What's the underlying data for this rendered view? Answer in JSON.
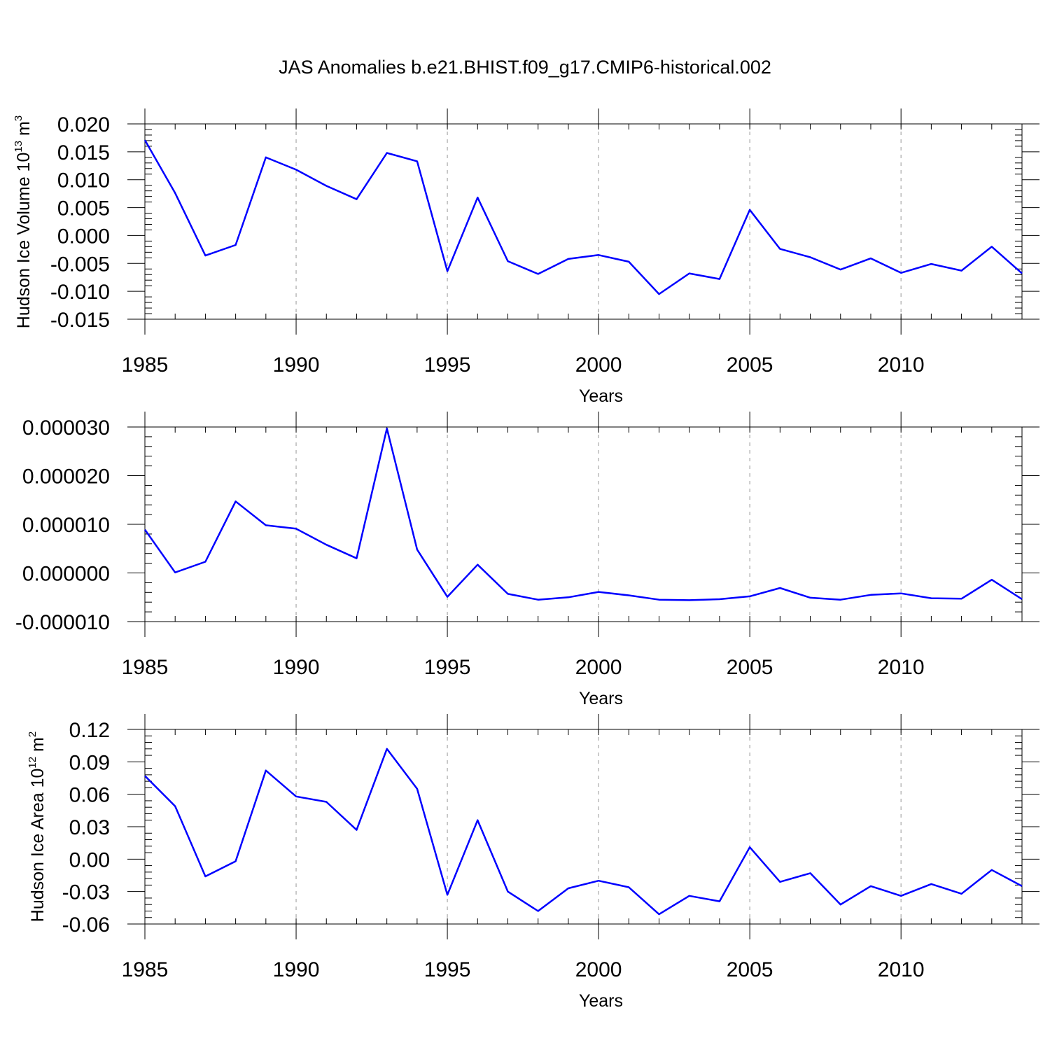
{
  "title": "JAS Anomalies b.e21.BHIST.f09_g17.CMIP6-historical.002",
  "colors": {
    "line": "#0000ff",
    "axis": "#000000",
    "grid": "#a8a8a8"
  },
  "chart_data": [
    {
      "type": "line",
      "xlabel": "Years",
      "ylabel": {
        "main": "Hudson Ice Volume 10",
        "sup1": "13",
        "unit": " m",
        "sup2": "3"
      },
      "xlim": [
        1985,
        2014
      ],
      "ylim": [
        -0.015,
        0.02
      ],
      "xticks": [
        1985,
        1990,
        1995,
        2000,
        2005,
        2010
      ],
      "xtick_labels": [
        "1985",
        "1990",
        "1995",
        "2000",
        "2005",
        "2010"
      ],
      "yticks": [
        0.02,
        0.015,
        0.01,
        0.005,
        0.0,
        -0.005,
        -0.01,
        -0.015
      ],
      "ytick_labels": [
        "0.020",
        "0.015",
        "0.010",
        "0.005",
        "0.000",
        "-0.005",
        "-0.010",
        "-0.015"
      ],
      "grid": "vertical dashed",
      "series": [
        {
          "x": [
            1985,
            1986,
            1987,
            1988,
            1989,
            1990,
            1991,
            1992,
            1993,
            1994,
            1995,
            1996,
            1997,
            1998,
            1999,
            2000,
            2001,
            2002,
            2003,
            2004,
            2005,
            2006,
            2007,
            2008,
            2009,
            2010,
            2011,
            2012,
            2013,
            2014
          ],
          "values": [
            0.0171,
            0.0076,
            -0.0036,
            -0.0017,
            0.014,
            0.0118,
            0.0089,
            0.0065,
            0.0148,
            0.0133,
            -0.0064,
            0.0068,
            -0.0046,
            -0.0069,
            -0.0042,
            -0.0035,
            -0.0047,
            -0.0105,
            -0.0068,
            -0.0078,
            0.0046,
            -0.0024,
            -0.0039,
            -0.0061,
            -0.0041,
            -0.0067,
            -0.0051,
            -0.0063,
            -0.002,
            -0.0068
          ]
        }
      ]
    },
    {
      "type": "line",
      "xlabel": "Years",
      "ylabel": null,
      "xlim": [
        1985,
        2014
      ],
      "ylim": [
        -1e-05,
        3e-05
      ],
      "xticks": [
        1985,
        1990,
        1995,
        2000,
        2005,
        2010
      ],
      "xtick_labels": [
        "1985",
        "1990",
        "1995",
        "2000",
        "2005",
        "2010"
      ],
      "yticks": [
        3e-05,
        2e-05,
        1e-05,
        0.0,
        -1e-05
      ],
      "ytick_labels": [
        "0.000030",
        "0.000020",
        "0.000010",
        "0.000000",
        "-0.000010"
      ],
      "grid": "vertical dashed",
      "series": [
        {
          "x": [
            1985,
            1986,
            1987,
            1988,
            1989,
            1990,
            1991,
            1992,
            1993,
            1994,
            1995,
            1996,
            1997,
            1998,
            1999,
            2000,
            2001,
            2002,
            2003,
            2004,
            2005,
            2006,
            2007,
            2008,
            2009,
            2010,
            2011,
            2012,
            2013,
            2014
          ],
          "values": [
            8.9e-06,
            1e-07,
            2.3e-06,
            1.47e-05,
            9.8e-06,
            9.1e-06,
            5.8e-06,
            3e-06,
            2.97e-05,
            4.8e-06,
            -4.9e-06,
            1.7e-06,
            -4.3e-06,
            -5.5e-06,
            -5e-06,
            -3.9e-06,
            -4.6e-06,
            -5.5e-06,
            -5.6e-06,
            -5.4e-06,
            -4.8e-06,
            -3.1e-06,
            -5.1e-06,
            -5.5e-06,
            -4.5e-06,
            -4.2e-06,
            -5.2e-06,
            -5.3e-06,
            -1.4e-06,
            -5.4e-06
          ]
        }
      ]
    },
    {
      "type": "line",
      "xlabel": "Years",
      "ylabel": {
        "main": "Hudson Ice Area 10",
        "sup1": "12",
        "unit": " m",
        "sup2": "2"
      },
      "xlim": [
        1985,
        2014
      ],
      "ylim": [
        -0.06,
        0.12
      ],
      "xticks": [
        1985,
        1990,
        1995,
        2000,
        2005,
        2010
      ],
      "xtick_labels": [
        "1985",
        "1990",
        "1995",
        "2000",
        "2005",
        "2010"
      ],
      "yticks": [
        0.12,
        0.09,
        0.06,
        0.03,
        0.0,
        -0.03,
        -0.06
      ],
      "ytick_labels": [
        "0.12",
        "0.09",
        "0.06",
        "0.03",
        "0.00",
        "-0.03",
        "-0.06"
      ],
      "grid": "vertical dashed",
      "series": [
        {
          "x": [
            1985,
            1986,
            1987,
            1988,
            1989,
            1990,
            1991,
            1992,
            1993,
            1994,
            1995,
            1996,
            1997,
            1998,
            1999,
            2000,
            2001,
            2002,
            2003,
            2004,
            2005,
            2006,
            2007,
            2008,
            2009,
            2010,
            2011,
            2012,
            2013,
            2014
          ],
          "values": [
            0.077,
            0.049,
            -0.016,
            -0.002,
            0.082,
            0.058,
            0.053,
            0.027,
            0.102,
            0.065,
            -0.033,
            0.036,
            -0.03,
            -0.048,
            -0.027,
            -0.02,
            -0.026,
            -0.051,
            -0.034,
            -0.039,
            0.011,
            -0.021,
            -0.013,
            -0.042,
            -0.025,
            -0.034,
            -0.023,
            -0.032,
            -0.01,
            -0.025
          ]
        }
      ]
    }
  ]
}
